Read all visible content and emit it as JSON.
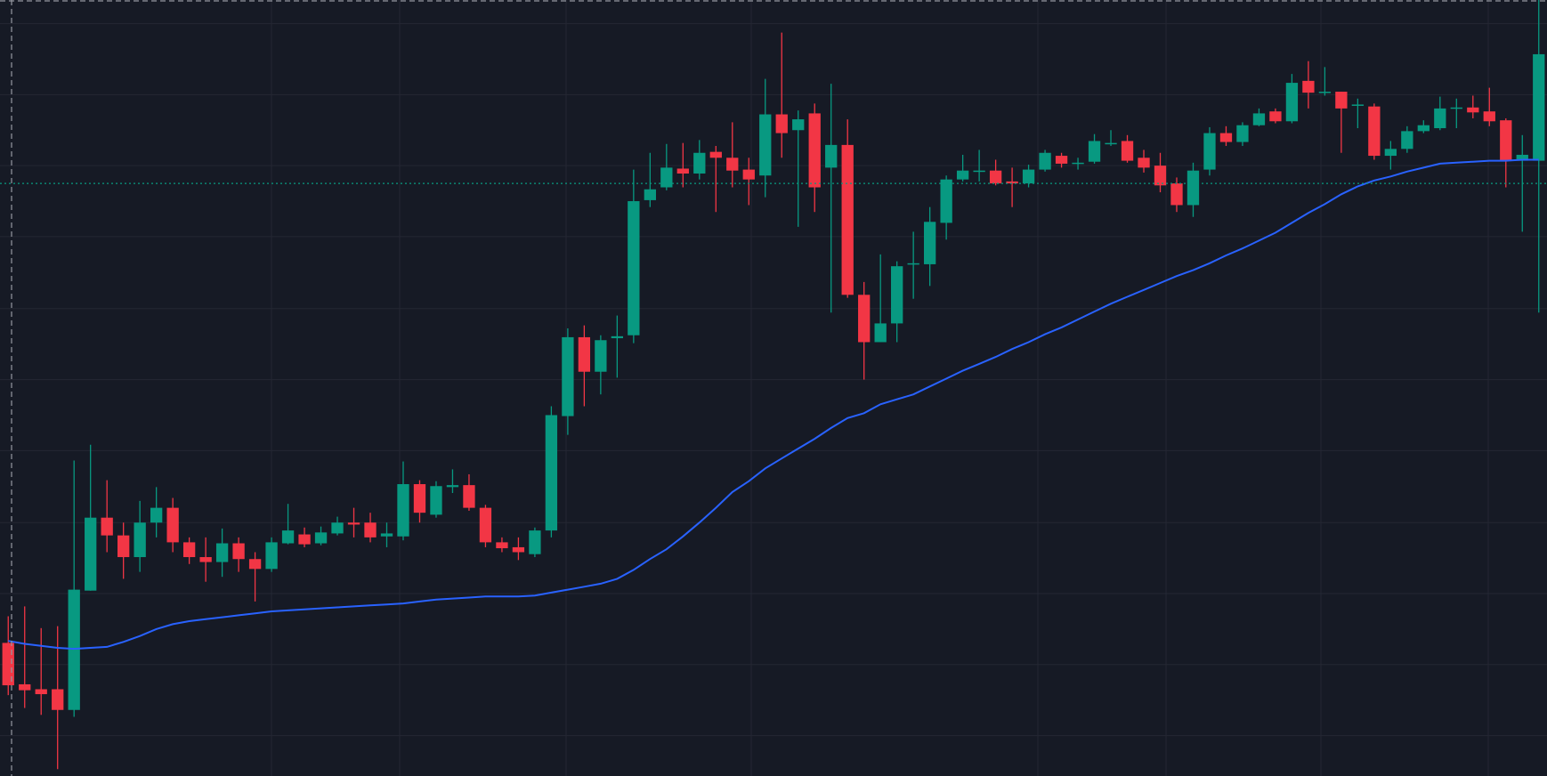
{
  "chart_data": {
    "type": "candlestick",
    "categories": [
      null,
      null,
      null,
      null,
      null,
      null,
      null,
      null,
      null,
      null,
      null,
      null,
      null,
      null,
      null,
      null,
      null,
      null,
      null,
      null,
      null,
      null,
      null,
      null,
      null,
      null,
      null,
      null,
      null,
      null,
      null,
      null,
      null,
      null,
      null,
      null,
      null,
      null,
      null,
      null,
      null,
      null,
      null,
      null,
      null,
      null,
      null,
      null,
      null,
      null,
      null,
      null,
      null,
      null,
      null,
      null,
      null,
      null,
      null,
      null,
      null,
      null,
      null,
      null,
      null,
      null,
      null,
      null,
      null,
      null,
      null,
      null,
      null,
      null,
      null,
      null,
      null,
      null,
      null,
      null,
      null,
      null,
      null,
      null,
      null,
      null,
      null,
      null,
      null,
      null,
      null,
      null,
      null,
      null
    ],
    "open": [
      135,
      93,
      88,
      88,
      67,
      188,
      262,
      244,
      222,
      257,
      272,
      237,
      222,
      217,
      236,
      220,
      210,
      236,
      245,
      236,
      246,
      257,
      257,
      243,
      243,
      296,
      265,
      293,
      295,
      272,
      237,
      232,
      225,
      249,
      365,
      445,
      410,
      444,
      447,
      584,
      597,
      616,
      611,
      633,
      627,
      615,
      609,
      671,
      655,
      672,
      617,
      640,
      488,
      440,
      459,
      519,
      519,
      561,
      605,
      613,
      614,
      603,
      601,
      615,
      629,
      621,
      623,
      641,
      644,
      627,
      619,
      601,
      579,
      615,
      652,
      643,
      660,
      674,
      664,
      705,
      693,
      694,
      680,
      679,
      629,
      636,
      654,
      657,
      677,
      678,
      674,
      665,
      624,
      624
    ],
    "high": [
      162,
      172,
      150,
      152,
      320,
      336,
      300,
      257,
      279,
      293,
      282,
      242,
      242,
      251,
      242,
      227,
      242,
      276,
      252,
      253,
      263,
      272,
      267,
      257,
      319,
      300,
      299,
      311,
      306,
      275,
      242,
      242,
      252,
      375,
      454,
      457,
      447,
      467,
      615,
      632,
      641,
      642,
      645,
      639,
      663,
      627,
      707,
      754,
      675,
      682,
      702,
      666,
      501,
      529,
      522,
      552,
      577,
      609,
      630,
      635,
      625,
      617,
      620,
      635,
      632,
      627,
      651,
      655,
      650,
      635,
      632,
      607,
      622,
      658,
      659,
      663,
      677,
      677,
      712,
      725,
      719,
      694,
      687,
      682,
      644,
      659,
      665,
      689,
      687,
      690,
      698,
      667,
      650,
      787
    ],
    "low": [
      82,
      69,
      62,
      7,
      60,
      188,
      227,
      200,
      207,
      242,
      227,
      215,
      197,
      202,
      207,
      177,
      207,
      235,
      232,
      234,
      244,
      242,
      237,
      232,
      239,
      257,
      262,
      287,
      269,
      232,
      227,
      219,
      222,
      242,
      346,
      375,
      387,
      404,
      439,
      577,
      594,
      597,
      605,
      572,
      597,
      579,
      587,
      627,
      557,
      572,
      470,
      485,
      402,
      440,
      440,
      484,
      497,
      544,
      603,
      603,
      599,
      577,
      597,
      613,
      617,
      615,
      621,
      639,
      622,
      612,
      592,
      572,
      567,
      609,
      639,
      639,
      659,
      662,
      662,
      677,
      690,
      632,
      657,
      625,
      615,
      632,
      652,
      655,
      657,
      667,
      659,
      597,
      552,
      470
    ],
    "close": [
      92,
      87,
      83,
      67,
      189,
      262,
      244,
      222,
      257,
      272,
      237,
      222,
      217,
      236,
      220,
      210,
      237,
      249,
      235,
      247,
      257,
      255,
      242,
      246,
      296,
      267,
      294,
      295,
      272,
      237,
      231,
      227,
      249,
      366,
      445,
      410,
      442,
      446,
      583,
      595,
      617,
      611,
      632,
      627,
      614,
      605,
      671,
      652,
      666,
      597,
      640,
      488,
      440,
      459,
      517,
      520,
      562,
      605,
      614,
      614,
      601,
      601,
      615,
      632,
      621,
      622,
      644,
      642,
      624,
      617,
      599,
      579,
      614,
      652,
      643,
      660,
      672,
      664,
      703,
      693,
      694,
      677,
      681,
      629,
      636,
      654,
      660,
      677,
      678,
      673,
      664,
      624,
      630,
      732
    ],
    "up_color": "#089981",
    "down_color": "#f23645",
    "ma": {
      "color": "#2962ff",
      "values": [
        137,
        134,
        132,
        130,
        129,
        130,
        131,
        136,
        142,
        149,
        154,
        157,
        159,
        161,
        163,
        165,
        167,
        168,
        169,
        170,
        171,
        172,
        173,
        174,
        175,
        177,
        179,
        180,
        181,
        182,
        182,
        182,
        183,
        186,
        189,
        192,
        195,
        200,
        209,
        220,
        230,
        243,
        257,
        272,
        288,
        299,
        312,
        322,
        332,
        342,
        353,
        363,
        368,
        377,
        382,
        387,
        395,
        403,
        411,
        418,
        425,
        433,
        440,
        448,
        455,
        463,
        471,
        479,
        486,
        493,
        500,
        507,
        513,
        520,
        528,
        535,
        543,
        551,
        561,
        571,
        580,
        590,
        598,
        604,
        608,
        613,
        617,
        621,
        622,
        623,
        624,
        624,
        625,
        625
      ]
    },
    "price_line": {
      "value": 601,
      "color": "#089981"
    },
    "ylim": [
      0,
      787
    ],
    "yticks": [
      41,
      113,
      185,
      257,
      330,
      402,
      474,
      547,
      619,
      691,
      763
    ],
    "grid": true
  }
}
